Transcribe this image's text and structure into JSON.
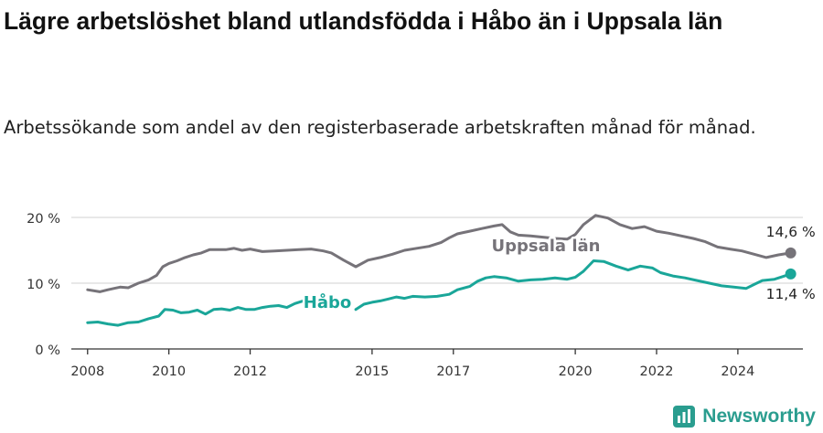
{
  "title": "Lägre arbetslöshet bland utlandsfödda i Håbo än i Uppsala län",
  "subtitle": "Arbetssökande som andel av den registerbaserade arbetskraften månad för månad.",
  "brand": "Newsworthy",
  "colors": {
    "uppsala": "#767379",
    "habo": "#1aa699",
    "axis": "#333333",
    "grid": "#d9d9d9"
  },
  "chart_data": {
    "type": "line",
    "ylim": [
      0,
      20
    ],
    "xlim": [
      2007.6,
      2025.6
    ],
    "y_ticks": [
      0,
      10,
      20
    ],
    "y_tick_labels": [
      "0 %",
      "10 %",
      "20 %"
    ],
    "x_ticks": [
      2008,
      2010,
      2012,
      2015,
      2017,
      2020,
      2022,
      2024
    ],
    "x_tick_labels": [
      "2008",
      "2010",
      "2012",
      "2015",
      "2017",
      "2020",
      "2022",
      "2024"
    ],
    "grid": "horizontal",
    "series": [
      {
        "name": "Uppsala län",
        "color": "#767379",
        "end_label": "14,6 %",
        "points": [
          [
            2008.0,
            9.0
          ],
          [
            2008.3,
            8.7
          ],
          [
            2008.5,
            9.0
          ],
          [
            2008.8,
            9.4
          ],
          [
            2009.0,
            9.3
          ],
          [
            2009.25,
            10.0
          ],
          [
            2009.5,
            10.5
          ],
          [
            2009.7,
            11.2
          ],
          [
            2009.85,
            12.5
          ],
          [
            2010.0,
            13.0
          ],
          [
            2010.2,
            13.4
          ],
          [
            2010.4,
            13.9
          ],
          [
            2010.6,
            14.3
          ],
          [
            2010.8,
            14.6
          ],
          [
            2011.0,
            15.1
          ],
          [
            2011.2,
            15.1
          ],
          [
            2011.4,
            15.1
          ],
          [
            2011.6,
            15.3
          ],
          [
            2011.8,
            15.0
          ],
          [
            2012.0,
            15.2
          ],
          [
            2012.3,
            14.8
          ],
          [
            2012.6,
            14.9
          ],
          [
            2012.9,
            15.0
          ],
          [
            2013.2,
            15.1
          ],
          [
            2013.5,
            15.2
          ],
          [
            2013.8,
            14.9
          ],
          [
            2014.0,
            14.6
          ],
          [
            2014.3,
            13.5
          ],
          [
            2014.6,
            12.5
          ],
          [
            2014.9,
            13.5
          ],
          [
            2015.2,
            13.9
          ],
          [
            2015.5,
            14.4
          ],
          [
            2015.8,
            15.0
          ],
          [
            2016.1,
            15.3
          ],
          [
            2016.4,
            15.6
          ],
          [
            2016.7,
            16.2
          ],
          [
            2016.9,
            16.9
          ],
          [
            2017.1,
            17.5
          ],
          [
            2017.4,
            17.9
          ],
          [
            2017.7,
            18.3
          ],
          [
            2018.0,
            18.7
          ],
          [
            2018.2,
            18.9
          ],
          [
            2018.4,
            17.8
          ],
          [
            2018.6,
            17.3
          ],
          [
            2018.9,
            17.2
          ],
          [
            2019.2,
            17.0
          ],
          [
            2019.5,
            16.8
          ],
          [
            2019.8,
            16.7
          ],
          [
            2020.0,
            17.4
          ],
          [
            2020.2,
            18.9
          ],
          [
            2020.5,
            20.3
          ],
          [
            2020.8,
            19.9
          ],
          [
            2021.1,
            18.9
          ],
          [
            2021.4,
            18.3
          ],
          [
            2021.7,
            18.6
          ],
          [
            2022.0,
            17.9
          ],
          [
            2022.3,
            17.6
          ],
          [
            2022.6,
            17.2
          ],
          [
            2022.9,
            16.8
          ],
          [
            2023.2,
            16.3
          ],
          [
            2023.5,
            15.5
          ],
          [
            2023.8,
            15.2
          ],
          [
            2024.1,
            14.9
          ],
          [
            2024.4,
            14.4
          ],
          [
            2024.7,
            13.9
          ],
          [
            2025.0,
            14.3
          ],
          [
            2025.3,
            14.6
          ]
        ]
      },
      {
        "name": "Håbo",
        "color": "#1aa699",
        "end_label": "11,4 %",
        "points": [
          [
            2008.0,
            4.0
          ],
          [
            2008.25,
            4.1
          ],
          [
            2008.5,
            3.8
          ],
          [
            2008.75,
            3.6
          ],
          [
            2009.0,
            4.0
          ],
          [
            2009.25,
            4.1
          ],
          [
            2009.5,
            4.6
          ],
          [
            2009.75,
            5.0
          ],
          [
            2009.9,
            6.0
          ],
          [
            2010.1,
            5.9
          ],
          [
            2010.3,
            5.5
          ],
          [
            2010.5,
            5.6
          ],
          [
            2010.7,
            5.9
          ],
          [
            2010.9,
            5.3
          ],
          [
            2011.1,
            6.0
          ],
          [
            2011.3,
            6.1
          ],
          [
            2011.5,
            5.9
          ],
          [
            2011.7,
            6.3
          ],
          [
            2011.9,
            6.0
          ],
          [
            2012.1,
            6.0
          ],
          [
            2012.3,
            6.3
          ],
          [
            2012.5,
            6.5
          ],
          [
            2012.7,
            6.6
          ],
          [
            2012.9,
            6.3
          ],
          [
            2013.1,
            6.9
          ],
          [
            2013.25,
            7.2
          ],
          [
            2013.4,
            7.5
          ],
          [
            2014.6,
            6.0
          ],
          [
            2014.8,
            6.8
          ],
          [
            2015.0,
            7.1
          ],
          [
            2015.2,
            7.3
          ],
          [
            2015.4,
            7.6
          ],
          [
            2015.6,
            7.9
          ],
          [
            2015.8,
            7.7
          ],
          [
            2016.0,
            8.0
          ],
          [
            2016.3,
            7.9
          ],
          [
            2016.6,
            8.0
          ],
          [
            2016.9,
            8.3
          ],
          [
            2017.1,
            9.0
          ],
          [
            2017.4,
            9.5
          ],
          [
            2017.6,
            10.3
          ],
          [
            2017.8,
            10.8
          ],
          [
            2018.0,
            11.0
          ],
          [
            2018.3,
            10.8
          ],
          [
            2018.6,
            10.3
          ],
          [
            2018.9,
            10.5
          ],
          [
            2019.2,
            10.6
          ],
          [
            2019.5,
            10.8
          ],
          [
            2019.8,
            10.6
          ],
          [
            2020.0,
            10.9
          ],
          [
            2020.2,
            11.8
          ],
          [
            2020.45,
            13.4
          ],
          [
            2020.7,
            13.3
          ],
          [
            2021.0,
            12.6
          ],
          [
            2021.3,
            12.0
          ],
          [
            2021.6,
            12.6
          ],
          [
            2021.9,
            12.3
          ],
          [
            2022.1,
            11.6
          ],
          [
            2022.4,
            11.1
          ],
          [
            2022.7,
            10.8
          ],
          [
            2023.0,
            10.4
          ],
          [
            2023.3,
            10.0
          ],
          [
            2023.6,
            9.6
          ],
          [
            2023.9,
            9.4
          ],
          [
            2024.2,
            9.2
          ],
          [
            2024.4,
            9.8
          ],
          [
            2024.6,
            10.4
          ],
          [
            2024.9,
            10.6
          ],
          [
            2025.1,
            11.0
          ],
          [
            2025.3,
            11.4
          ]
        ],
        "gaps": [
          [
            2013.4,
            2014.6
          ]
        ]
      }
    ]
  }
}
